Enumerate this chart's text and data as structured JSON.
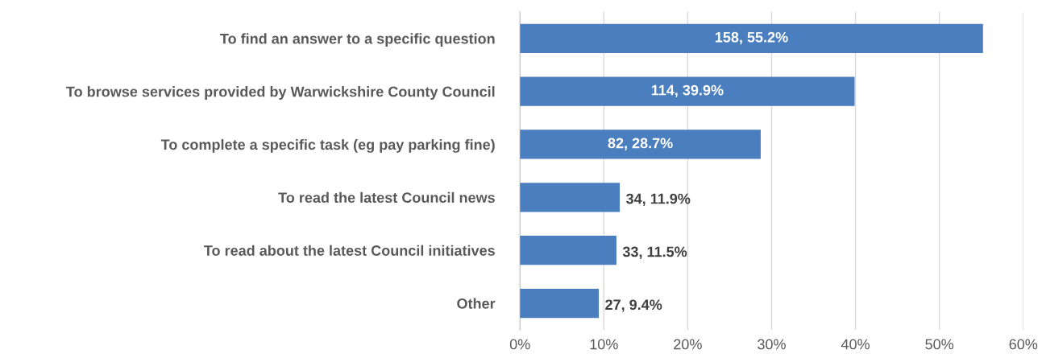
{
  "chart_data": {
    "type": "bar",
    "orientation": "horizontal",
    "categories": [
      "To find an answer to a specific question",
      "To browse services provided by Warwickshire County Council",
      "To complete a specific task (eg pay parking fine)",
      "To read the latest Council news",
      "To read about the latest Council initiatives",
      "Other"
    ],
    "values": [
      55.2,
      39.9,
      28.7,
      11.9,
      11.5,
      9.4
    ],
    "value_labels": [
      "158, 55.2%",
      "114, 39.9%",
      "82, 28.7%",
      "34, 11.9%",
      "33, 11.5%",
      "27, 9.4%"
    ],
    "color": "#4a7ebf",
    "xlim": [
      0,
      60
    ],
    "xticks": [
      {
        "value": 0,
        "label": "0%"
      },
      {
        "value": 10,
        "label": "10%"
      },
      {
        "value": 20,
        "label": "20%"
      },
      {
        "value": 30,
        "label": "30%"
      },
      {
        "value": 40,
        "label": "40%"
      },
      {
        "value": 50,
        "label": "50%"
      },
      {
        "value": 60,
        "label": "60%"
      }
    ],
    "grid": "x",
    "legend": false
  }
}
